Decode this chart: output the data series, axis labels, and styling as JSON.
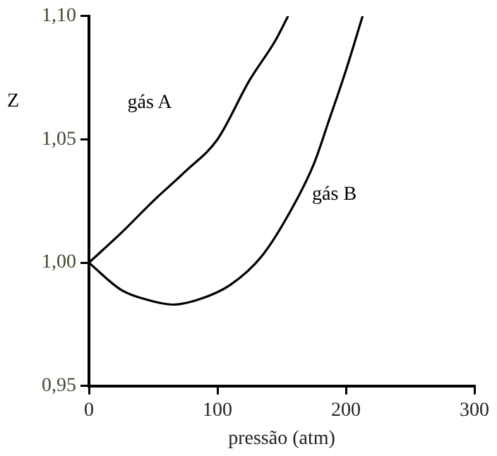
{
  "chart_data": {
    "type": "line",
    "xlabel": "pressão (atm)",
    "ylabel": "Z",
    "xlim": [
      0,
      300
    ],
    "xticks": [
      0,
      100,
      200,
      300
    ],
    "ylim": [
      0.95,
      1.1
    ],
    "yticks": [
      {
        "value": 0.95,
        "label": "0,95"
      },
      {
        "value": 1.0,
        "label": "1,00"
      },
      {
        "value": 1.05,
        "label": "1,05"
      },
      {
        "value": 1.1,
        "label": "1,10"
      }
    ],
    "grid": false,
    "legend": false,
    "marker": "none",
    "line_style": "solid",
    "series": [
      {
        "name": "gás A",
        "color": "#000000",
        "x": [
          0,
          25,
          50,
          75,
          100,
          125,
          145,
          155
        ],
        "values": [
          1.0,
          1.012,
          1.025,
          1.037,
          1.05,
          1.074,
          1.09,
          1.1
        ]
      },
      {
        "name": "gás B",
        "color": "#000000",
        "x": [
          0,
          25,
          45,
          65,
          85,
          110,
          135,
          158,
          175,
          187,
          200,
          213
        ],
        "values": [
          1.0,
          0.989,
          0.985,
          0.983,
          0.985,
          0.991,
          1.003,
          1.022,
          1.04,
          1.058,
          1.078,
          1.1
        ]
      }
    ]
  }
}
